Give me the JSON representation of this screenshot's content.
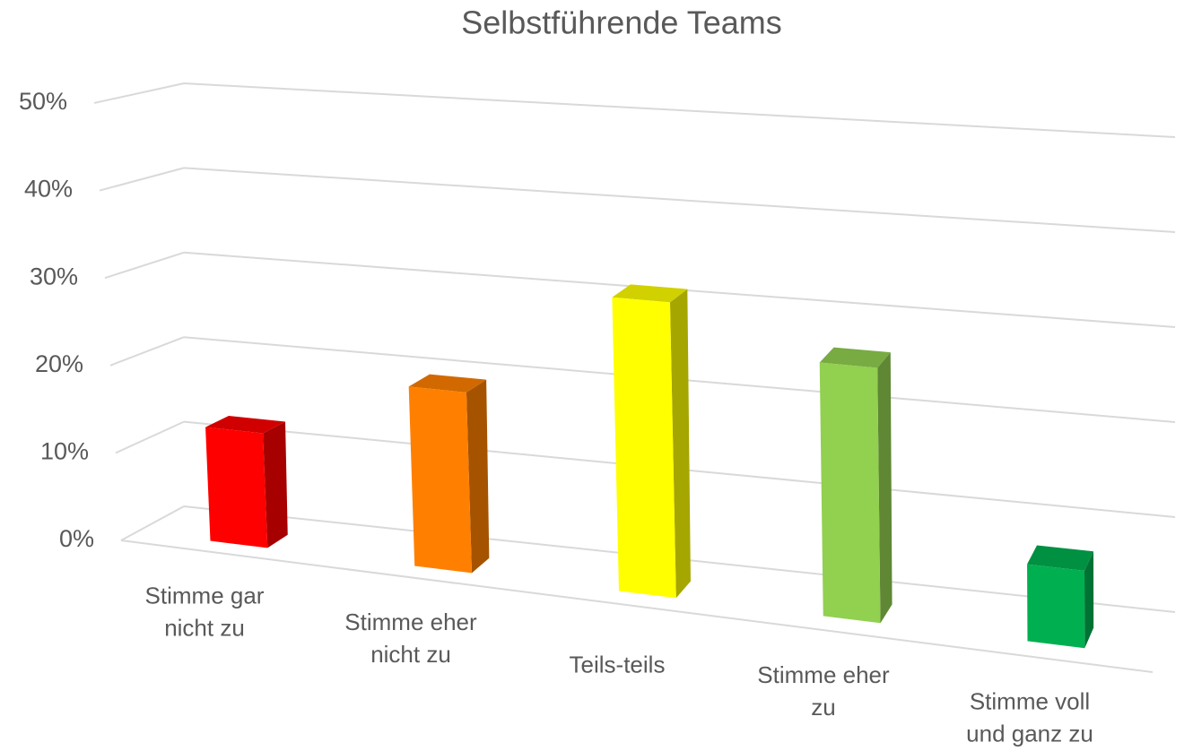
{
  "chart_data": {
    "type": "bar3d",
    "title": "Selbstführende Teams",
    "categories": [
      "Stimme gar nicht zu",
      "Stimme eher nicht zu",
      "Teils-teils",
      "Stimme eher zu",
      "Stimme voll und ganz zu"
    ],
    "values": [
      13,
      20,
      32,
      27,
      8
    ],
    "colors": [
      "#ff0000",
      "#ff8000",
      "#ffff00",
      "#92d050",
      "#00b050"
    ],
    "ylim": [
      0,
      50
    ],
    "yticks": [
      {
        "value": 0,
        "label": "0%"
      },
      {
        "value": 10,
        "label": "10%"
      },
      {
        "value": 20,
        "label": "20%"
      },
      {
        "value": 30,
        "label": "30%"
      },
      {
        "value": 40,
        "label": "40%"
      },
      {
        "value": 50,
        "label": "50%"
      }
    ],
    "grid": true
  }
}
